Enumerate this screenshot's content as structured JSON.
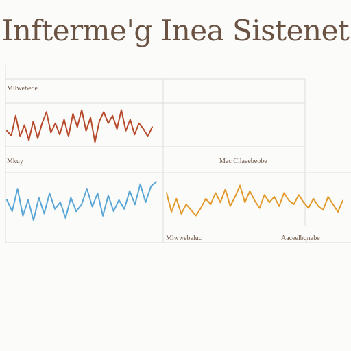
{
  "title": "Infterme'g Inea Sistenet",
  "colors": {
    "red": "#b84a2c",
    "blue": "#5aa6d6",
    "orange": "#e29a2a",
    "grid": "#dcdcdc",
    "text": "#6b5343"
  },
  "chart_data": [
    {
      "type": "line",
      "label": "Mllwebede",
      "series": [
        {
          "color": "#b84a2c",
          "values": [
            0.35,
            0.22,
            0.75,
            0.2,
            0.5,
            0.1,
            0.6,
            0.15,
            0.55,
            0.85,
            0.3,
            0.55,
            0.25,
            0.65,
            0.2,
            0.8,
            0.45,
            0.9,
            0.35,
            0.7,
            0.05,
            0.6,
            0.85,
            0.55,
            0.75,
            0.4,
            0.9,
            0.35,
            0.65,
            0.25,
            0.55,
            0.4,
            0.2,
            0.45
          ]
        }
      ]
    },
    {
      "type": "line",
      "label": "Mkuy",
      "series": [
        {
          "color": "#5aa6d6",
          "values": [
            0.55,
            0.3,
            0.8,
            0.2,
            0.55,
            0.1,
            0.6,
            0.25,
            0.7,
            0.35,
            0.5,
            0.15,
            0.6,
            0.3,
            0.45,
            0.8,
            0.4,
            0.7,
            0.2,
            0.65,
            0.3,
            0.55,
            0.35,
            0.75,
            0.45,
            0.9,
            0.5,
            0.85,
            0.95
          ]
        }
      ]
    },
    {
      "type": "line",
      "label": "Mac Cllaeebeobe",
      "series": []
    },
    {
      "type": "line",
      "label": "",
      "series": [
        {
          "color": "#e29a2a",
          "values": [
            0.7,
            0.2,
            0.55,
            0.15,
            0.4,
            0.25,
            0.1,
            0.3,
            0.55,
            0.4,
            0.7,
            0.45,
            0.8,
            0.35,
            0.6,
            0.9,
            0.45,
            0.75,
            0.5,
            0.3,
            0.65,
            0.45,
            0.6,
            0.35,
            0.7,
            0.5,
            0.4,
            0.65,
            0.45,
            0.3,
            0.55,
            0.35,
            0.25,
            0.6,
            0.4,
            0.2,
            0.5
          ]
        }
      ]
    }
  ],
  "bottom_labels": {
    "left": "Mlwwebeluc",
    "right": "Aaceelbqnabe"
  }
}
